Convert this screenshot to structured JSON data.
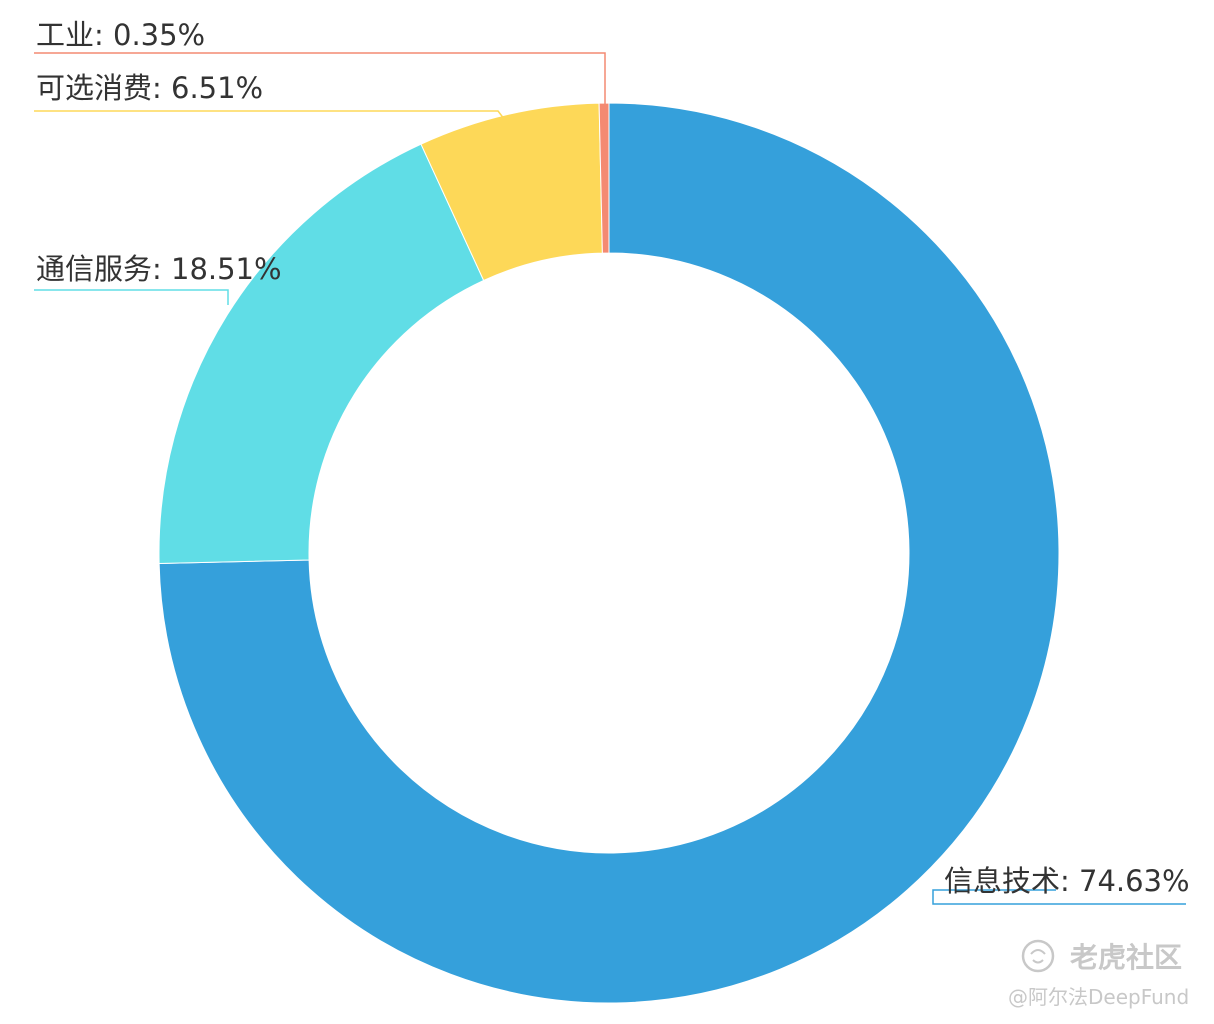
{
  "chart_data": {
    "type": "pie",
    "variant": "donut",
    "labels": [
      "信息技术",
      "通信服务",
      "可选消费",
      "工业"
    ],
    "values": [
      74.63,
      18.51,
      6.51,
      0.35
    ],
    "colors": [
      "#35a0db",
      "#60dde6",
      "#fdd858",
      "#f48a72"
    ],
    "label_format": "{label}: {value}%",
    "label_separator": ": ",
    "value_suffix": "%",
    "start_angle_deg": 0,
    "direction": "clockwise"
  },
  "watermark": {
    "brand": "老虎社区",
    "author": "@阿尔法DeepFund"
  }
}
